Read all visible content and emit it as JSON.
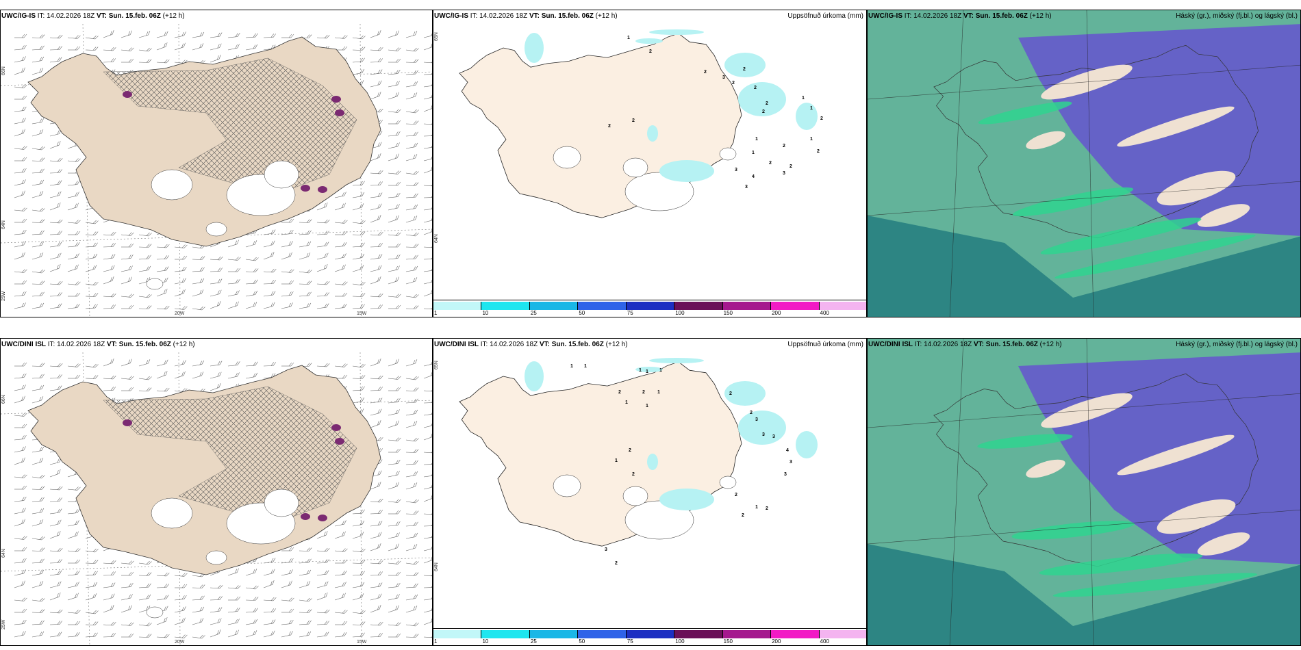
{
  "colors": {
    "land": "#e9d8c4",
    "land_light": "#fbefe2",
    "sea": "#ffffff",
    "precip": "#b6f2f3",
    "purple": "#7b2a72",
    "cloud_teal": "#63b39a",
    "cloud_dark": "#2d8583",
    "cloud_blue": "#6562c7",
    "cloud_green": "#2fd38f"
  },
  "rows": [
    {
      "wind": {
        "model": "UWC/IG-IS",
        "it_label": "IT:",
        "it_value": "14.02.2026 18Z",
        "vt_label": "VT:",
        "vt_value": "Sun. 15.feb. 06Z",
        "lead": "(+12 h)",
        "lat_labels": [
          "66N",
          "64N",
          "25W"
        ],
        "lon_labels": [
          "20W",
          "15W"
        ]
      },
      "precip": {
        "model": "UWC/IG-IS",
        "it_label": "IT:",
        "it_value": "14.02.2026 18Z",
        "vt_label": "VT:",
        "vt_value": "Sun. 15.feb. 06Z",
        "lead": "(+12 h)",
        "right_title": "Uppsöfnuð úrkoma (mm)",
        "lat_labels": [
          "65N",
          "64N"
        ],
        "values": [
          "1",
          "2",
          "2",
          "2",
          "2",
          "2",
          "1",
          "1",
          "1",
          "1",
          "2",
          "2",
          "3",
          "4",
          "3",
          "2",
          "2",
          "2",
          "1",
          "2",
          "2",
          "3",
          "2",
          "3",
          "2"
        ]
      },
      "cloud": {
        "model": "UWC/IG-IS",
        "it_label": "IT:",
        "it_value": "14.02.2026 18Z",
        "vt_label": "VT:",
        "vt_value": "Sun. 15.feb. 06Z",
        "lead": "(+12 h)",
        "right_title": "Háský (gr.), miðský (fj.bl.) og lágský (bl.)"
      }
    },
    {
      "wind": {
        "model": "UWC/DINI ISL",
        "it_label": "IT:",
        "it_value": "14.02.2026 18Z",
        "vt_label": "VT:",
        "vt_value": "Sun. 15.feb. 06Z",
        "lead": "(+12 h)",
        "lat_labels": [
          "66N",
          "64N",
          "25W"
        ],
        "lon_labels": [
          "20W",
          "15W"
        ]
      },
      "precip": {
        "model": "UWC/DINI ISL",
        "it_label": "IT:",
        "it_value": "14.02.2026 18Z",
        "vt_label": "VT:",
        "vt_value": "Sun. 15.feb. 06Z",
        "lead": "(+12 h)",
        "right_title": "Uppsöfnuð úrkoma (mm)",
        "lat_labels": [
          "65N",
          "64N"
        ],
        "values": [
          "1",
          "1",
          "1",
          "1",
          "1",
          "2",
          "2",
          "1",
          "1",
          "1",
          "2",
          "2",
          "3",
          "3",
          "3",
          "4",
          "3",
          "3",
          "2",
          "1",
          "2",
          "2",
          "2",
          "1",
          "2",
          "3",
          "2"
        ]
      },
      "cloud": {
        "model": "UWC/DINI ISL",
        "it_label": "IT:",
        "it_value": "14.02.2026 18Z",
        "vt_label": "VT:",
        "vt_value": "Sun. 15.feb. 06Z",
        "lead": "(+12 h)",
        "right_title": "Háský (gr.), miðský (fj.bl.) og lágský (bl.)"
      }
    }
  ],
  "colorbar": {
    "labels": [
      "1",
      "10",
      "25",
      "50",
      "75",
      "100",
      "150",
      "200",
      "400"
    ],
    "colors": [
      "#c2f7f8",
      "#1fe6ef",
      "#1ab7e6",
      "#2f63e8",
      "#1d2fc2",
      "#6a1058",
      "#a5188e",
      "#f21bc5",
      "#f4b4f0"
    ]
  }
}
